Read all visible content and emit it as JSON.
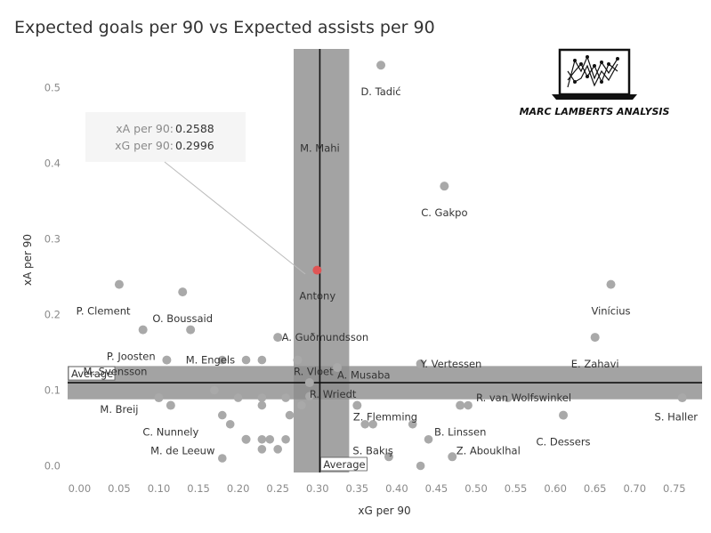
{
  "title": "Expected goals per 90 vs Expected assists per 90",
  "logo": {
    "text": "MARC LAMBERTS ANALYSIS",
    "icon": "laptop-line-chart-icon"
  },
  "tooltip": {
    "x_label": "xA per 90:",
    "x_value": "0.2588",
    "y_label": "xG per 90:",
    "y_value": "0.2996"
  },
  "chart_data": {
    "type": "scatter",
    "xlabel": "xG per 90",
    "ylabel": "xA per 90",
    "xlim": [
      -0.015,
      0.785
    ],
    "ylim": [
      -0.01,
      0.555
    ],
    "xticks": [
      "0.00",
      "0.05",
      "0.10",
      "0.15",
      "0.20",
      "0.25",
      "0.30",
      "0.35",
      "0.40",
      "0.45",
      "0.50",
      "0.55",
      "0.60",
      "0.65",
      "0.70",
      "0.75"
    ],
    "yticks": [
      "0.0",
      "0.1",
      "0.2",
      "0.3",
      "0.4",
      "0.5"
    ],
    "average_x": 0.303,
    "average_y": 0.11,
    "average_label": "Average",
    "band_x": [
      0.27,
      0.34
    ],
    "band_y": [
      0.088,
      0.132
    ],
    "colors": {
      "point": "#a9a9a9",
      "highlight": "#e05555",
      "band": "#8c8c8c",
      "avg_line": "#111111"
    },
    "labeled_points": [
      {
        "name": "D. Tadić",
        "x": 0.38,
        "y": 0.53,
        "lx": 0.38,
        "ly": 0.495,
        "anchor": "middle"
      },
      {
        "name": "M. Mahi",
        "lx": 0.303,
        "ly": 0.42,
        "anchor": "middle"
      },
      {
        "name": "C. Gakpo",
        "x": 0.46,
        "y": 0.37,
        "lx": 0.46,
        "ly": 0.335,
        "anchor": "middle"
      },
      {
        "name": "Antony",
        "x": 0.2996,
        "y": 0.2588,
        "lx": 0.3,
        "ly": 0.225,
        "anchor": "middle",
        "highlight": true
      },
      {
        "name": "P. Clement",
        "x": 0.05,
        "y": 0.24,
        "lx": 0.03,
        "ly": 0.205,
        "anchor": "middle"
      },
      {
        "name": "O. Boussaid",
        "x": 0.13,
        "y": 0.23,
        "lx": 0.13,
        "ly": 0.195,
        "anchor": "middle"
      },
      {
        "name": "Vinícius",
        "x": 0.67,
        "y": 0.24,
        "lx": 0.67,
        "ly": 0.205,
        "anchor": "middle"
      },
      {
        "name": "P. Joosten",
        "x": 0.08,
        "y": 0.18,
        "lx": 0.065,
        "ly": 0.145,
        "anchor": "middle"
      },
      {
        "name": "M. Engels",
        "x": 0.14,
        "y": 0.18,
        "lx": 0.165,
        "ly": 0.14,
        "anchor": "middle"
      },
      {
        "name": "A. Guðmundsson",
        "x": 0.25,
        "y": 0.17,
        "lx": 0.255,
        "ly": 0.17,
        "anchor": "start"
      },
      {
        "name": "E. Zahavi",
        "x": 0.65,
        "y": 0.17,
        "lx": 0.65,
        "ly": 0.135,
        "anchor": "middle"
      },
      {
        "name": "Y. Vertessen",
        "x": 0.43,
        "y": 0.135,
        "lx": 0.43,
        "ly": 0.135,
        "anchor": "start"
      },
      {
        "name": "M. Svensson",
        "x": 0.11,
        "y": 0.14,
        "lx": 0.045,
        "ly": 0.125,
        "anchor": "middle"
      },
      {
        "name": "R. Vloet",
        "x": 0.275,
        "y": 0.14,
        "lx": 0.27,
        "ly": 0.125,
        "anchor": "start"
      },
      {
        "name": "A. Musaba",
        "x": 0.325,
        "y": 0.13,
        "lx": 0.325,
        "ly": 0.12,
        "anchor": "start"
      },
      {
        "name": "R. Wriedt",
        "x": 0.29,
        "y": 0.11,
        "lx": 0.29,
        "ly": 0.095,
        "anchor": "start"
      },
      {
        "name": "R. van Wolfswinkel",
        "x": 0.54,
        "y": 0.09,
        "lx": 0.5,
        "ly": 0.09,
        "anchor": "start"
      },
      {
        "name": "M. Breij",
        "x": 0.1,
        "y": 0.09,
        "lx": 0.05,
        "ly": 0.075,
        "anchor": "middle"
      },
      {
        "name": "S. Haller",
        "x": 0.76,
        "y": 0.09,
        "lx": 0.725,
        "ly": 0.065,
        "anchor": "start"
      },
      {
        "name": "Z. Flemming",
        "x": 0.35,
        "y": 0.08,
        "lx": 0.345,
        "ly": 0.065,
        "anchor": "start"
      },
      {
        "name": "C. Nunnely",
        "x": 0.115,
        "y": 0.08,
        "lx": 0.115,
        "ly": 0.045,
        "anchor": "middle"
      },
      {
        "name": "B. Linssen",
        "x": 0.48,
        "y": 0.08,
        "lx": 0.48,
        "ly": 0.045,
        "anchor": "middle"
      },
      {
        "name": "C. Dessers",
        "x": 0.61,
        "y": 0.067,
        "lx": 0.61,
        "ly": 0.032,
        "anchor": "middle"
      },
      {
        "name": "M. de Leeuw",
        "x": 0.21,
        "y": 0.035,
        "lx": 0.13,
        "ly": 0.02,
        "anchor": "middle"
      },
      {
        "name": "S. Bakış",
        "x": 0.39,
        "y": 0.012,
        "lx": 0.37,
        "ly": 0.02,
        "anchor": "middle"
      },
      {
        "name": "Z. Abouklhal",
        "x": 0.47,
        "y": 0.012,
        "lx": 0.475,
        "ly": 0.02,
        "anchor": "start"
      }
    ],
    "other_points": [
      [
        0.18,
        0.14
      ],
      [
        0.21,
        0.14
      ],
      [
        0.23,
        0.14
      ],
      [
        0.17,
        0.1
      ],
      [
        0.2,
        0.09
      ],
      [
        0.23,
        0.09
      ],
      [
        0.26,
        0.09
      ],
      [
        0.18,
        0.067
      ],
      [
        0.23,
        0.08
      ],
      [
        0.265,
        0.067
      ],
      [
        0.28,
        0.08
      ],
      [
        0.19,
        0.055
      ],
      [
        0.21,
        0.035
      ],
      [
        0.23,
        0.035
      ],
      [
        0.24,
        0.035
      ],
      [
        0.23,
        0.022
      ],
      [
        0.25,
        0.022
      ],
      [
        0.18,
        0.01
      ],
      [
        0.26,
        0.035
      ],
      [
        0.36,
        0.055
      ],
      [
        0.37,
        0.055
      ],
      [
        0.42,
        0.055
      ],
      [
        0.44,
        0.035
      ],
      [
        0.43,
        0.0
      ],
      [
        0.49,
        0.08
      ],
      [
        0.29,
        0.092
      ]
    ]
  }
}
